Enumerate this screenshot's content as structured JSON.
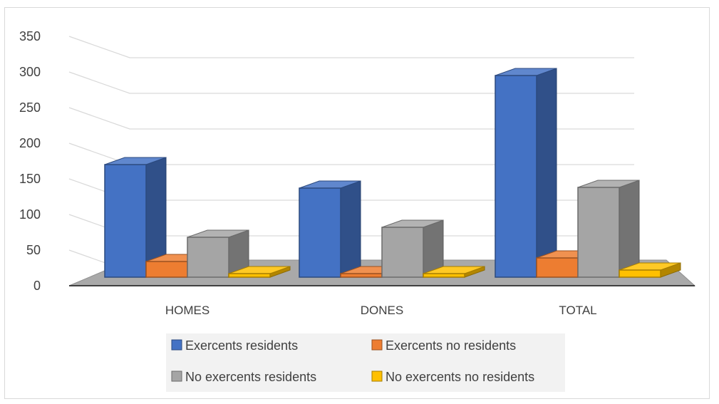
{
  "chart_data": {
    "type": "bar",
    "categories": [
      "HOMES",
      "DONES",
      "TOTAL"
    ],
    "series": [
      {
        "name": "Exercents residents",
        "values": [
          158,
          125,
          283
        ],
        "color": "#4472c4"
      },
      {
        "name": "Exercents no residents",
        "values": [
          22,
          5,
          27
        ],
        "color": "#ed7d31"
      },
      {
        "name": "No exercents residents",
        "values": [
          56,
          70,
          126
        ],
        "color": "#a5a5a5"
      },
      {
        "name": "No exercents no residents",
        "values": [
          5,
          5,
          10
        ],
        "color": "#ffc000"
      }
    ],
    "ylim": [
      0,
      350
    ],
    "yticks": [
      0,
      50,
      100,
      150,
      200,
      250,
      300,
      350
    ],
    "grid": true,
    "legend_position": "bottom",
    "style": "3d-clustered-column"
  }
}
